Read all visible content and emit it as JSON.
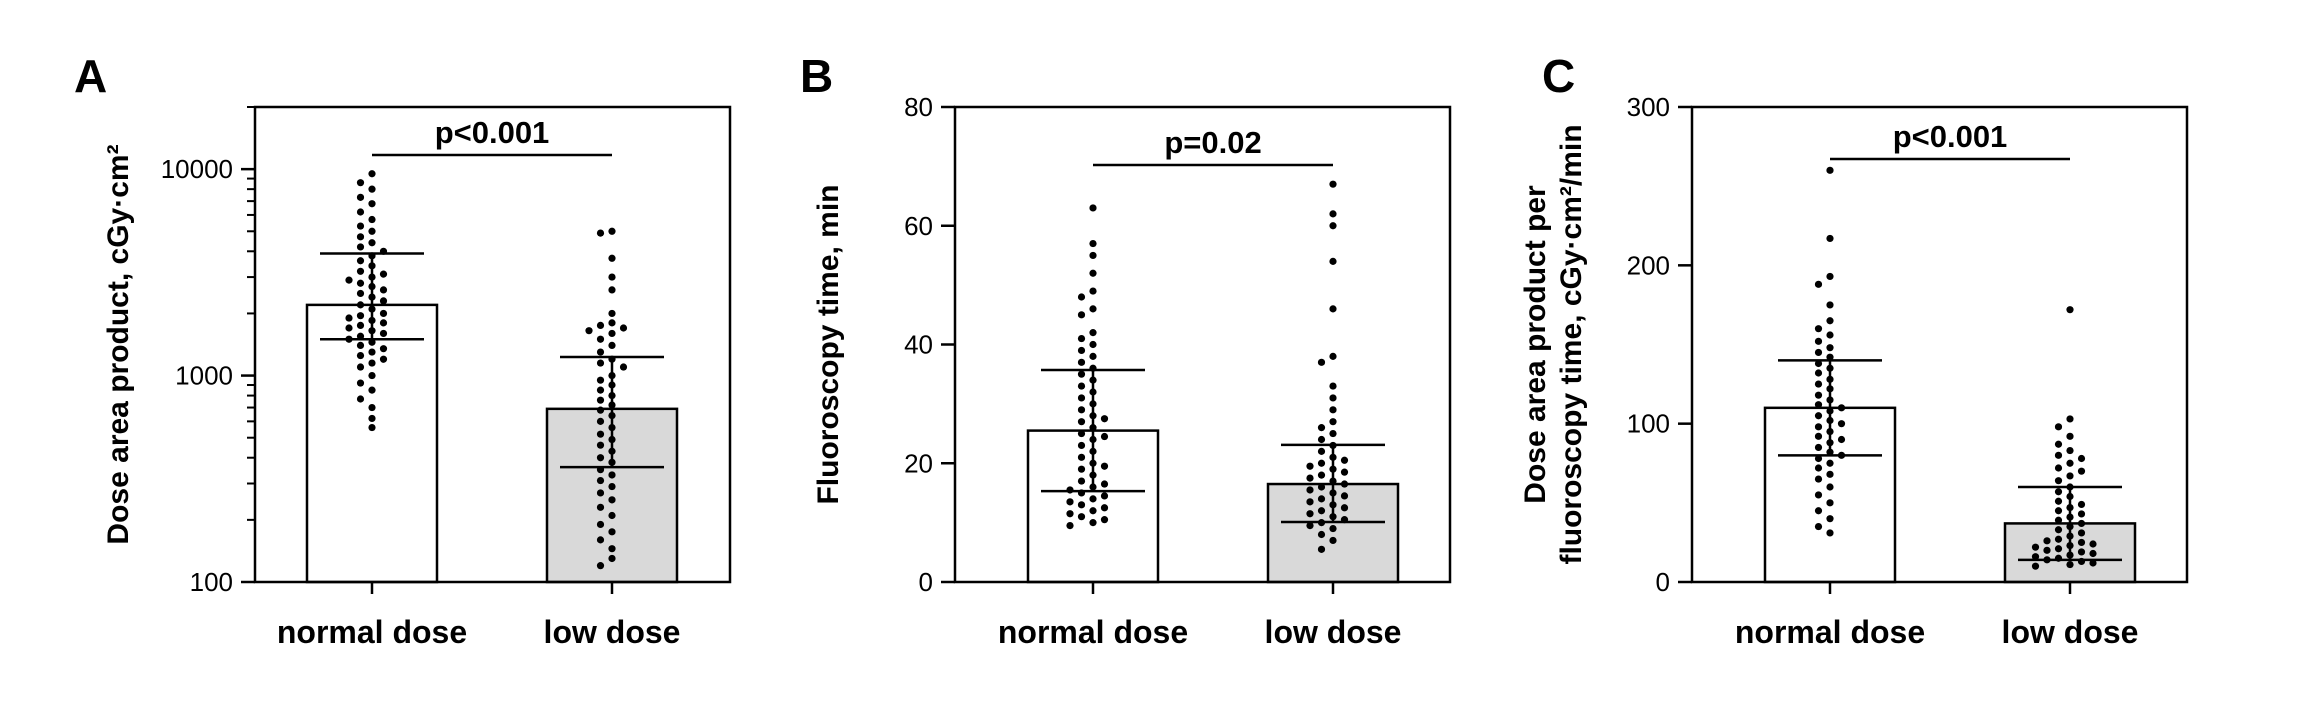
{
  "chart_data": [
    {
      "panel": "A",
      "type": "bar",
      "scale": "log",
      "ylim": [
        100,
        20000
      ],
      "yticks": [
        "100",
        "1000",
        "10000"
      ],
      "ylabel": "Dose area product, cGy·cm²",
      "categories": [
        "normal dose",
        "low dose"
      ],
      "colors": [
        "#ffffff",
        "#d9d9d9"
      ],
      "bars": [
        {
          "mean": 2200,
          "sd_low": 1500,
          "sd_high": 3900,
          "points": [
            9500,
            8600,
            8000,
            7300,
            6800,
            6200,
            5700,
            5300,
            5000,
            4700,
            4400,
            4200,
            4000,
            3800,
            3600,
            3400,
            3200,
            3100,
            3000,
            2900,
            2800,
            2700,
            2600,
            2500,
            2400,
            2300,
            2200,
            2100,
            2000,
            1950,
            1900,
            1850,
            1800,
            1750,
            1700,
            1650,
            1600,
            1550,
            1500,
            1450,
            1400,
            1350,
            1300,
            1250,
            1200,
            1150,
            1100,
            1000,
            920,
            850,
            770,
            700,
            620,
            560
          ]
        },
        {
          "mean": 690,
          "sd_low": 360,
          "sd_high": 1230,
          "points": [
            5000,
            4900,
            3700,
            3000,
            2600,
            2000,
            1800,
            1750,
            1700,
            1650,
            1600,
            1500,
            1400,
            1300,
            1200,
            1150,
            1100,
            1000,
            950,
            900,
            850,
            800,
            760,
            720,
            680,
            640,
            600,
            560,
            520,
            490,
            460,
            430,
            400,
            380,
            350,
            330,
            310,
            290,
            270,
            250,
            230,
            210,
            190,
            175,
            160,
            145,
            130,
            120
          ]
        }
      ],
      "pvalue": "p<0.001"
    },
    {
      "panel": "B",
      "type": "bar",
      "scale": "linear",
      "ylim": [
        0,
        80
      ],
      "yticks": [
        "0",
        "20",
        "40",
        "60",
        "80"
      ],
      "ylabel": "Fluoroscopy time, min",
      "categories": [
        "normal dose",
        "low dose"
      ],
      "colors": [
        "#ffffff",
        "#d9d9d9"
      ],
      "bars": [
        {
          "mean": 25.5,
          "sd_low": 15.3,
          "sd_high": 35.7,
          "points": [
            63,
            57,
            55,
            52,
            49,
            48,
            46,
            45,
            42,
            41,
            40,
            39,
            38,
            37,
            36,
            35,
            34,
            33,
            32,
            31,
            30,
            29,
            28,
            27.5,
            27,
            26,
            25,
            24.5,
            24,
            23,
            22,
            21,
            20,
            19.5,
            19,
            18,
            17,
            16.5,
            16,
            15.5,
            15,
            14.5,
            14,
            13.5,
            13,
            12.5,
            12,
            11.5,
            11,
            10.5,
            10,
            9.5
          ]
        },
        {
          "mean": 16.5,
          "sd_low": 10.1,
          "sd_high": 23.1,
          "points": [
            67,
            62,
            60,
            54,
            46,
            38,
            37,
            33,
            31,
            29,
            27,
            26,
            25,
            24,
            23,
            22,
            21,
            20.5,
            20,
            19.5,
            19,
            18.5,
            18,
            17.5,
            17,
            16.5,
            16,
            15.5,
            15,
            14.5,
            14,
            13.5,
            13,
            12.5,
            12,
            11.5,
            11,
            10.5,
            10,
            9.5,
            9,
            8,
            7,
            5.5
          ]
        }
      ],
      "pvalue": "p=0.02"
    },
    {
      "panel": "C",
      "type": "bar",
      "scale": "linear",
      "ylim": [
        0,
        300
      ],
      "yticks": [
        "0",
        "100",
        "200",
        "300"
      ],
      "ylabel_lines": [
        "Dose area product per",
        "fluoroscopy time, cGy·cm²/min"
      ],
      "categories": [
        "normal dose",
        "low dose"
      ],
      "colors": [
        "#ffffff",
        "#d9d9d9"
      ],
      "bars": [
        {
          "mean": 110,
          "sd_low": 80,
          "sd_high": 140,
          "points": [
            260,
            217,
            193,
            188,
            175,
            165,
            160,
            156,
            152,
            148,
            145,
            142,
            138,
            135,
            132,
            128,
            125,
            122,
            118,
            115,
            112,
            110,
            108,
            105,
            102,
            100,
            98,
            95,
            92,
            90,
            88,
            85,
            82,
            80,
            78,
            75,
            72,
            68,
            65,
            60,
            55,
            50,
            45,
            40,
            35,
            31
          ]
        },
        {
          "mean": 37,
          "sd_low": 14,
          "sd_high": 60,
          "points": [
            172,
            103,
            98,
            92,
            87,
            83,
            80,
            78,
            75,
            72,
            70,
            67,
            64,
            60,
            57,
            54,
            51,
            49,
            47,
            45,
            43,
            41,
            39,
            37,
            35,
            33,
            31,
            29,
            27,
            26,
            25,
            24,
            23,
            22,
            21,
            20,
            19,
            18,
            17,
            16,
            15,
            14,
            13,
            12,
            11,
            10
          ]
        }
      ],
      "pvalue": "p<0.001"
    }
  ]
}
